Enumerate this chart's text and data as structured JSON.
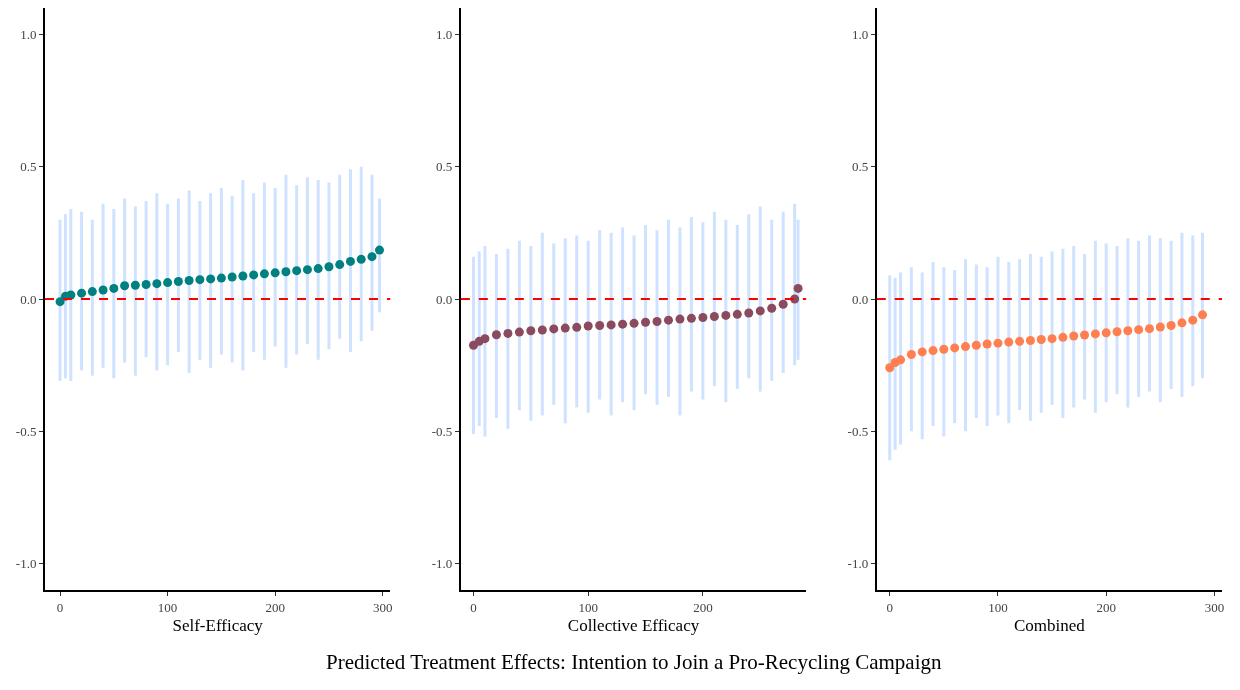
{
  "chart_data": [
    {
      "type": "scatter",
      "xlabel": "Self-Efficacy",
      "marker": "circle",
      "xlim": [
        -14,
        307
      ],
      "xticks": [
        0,
        100,
        200,
        300
      ],
      "ylim": [
        -1.1,
        1.1
      ],
      "yticks": [
        {
          "value": -1,
          "label": "-1.0"
        },
        {
          "value": -0.5,
          "label": "-0.5"
        },
        {
          "value": 0,
          "label": "0.0"
        },
        {
          "value": 0.5,
          "label": "0.5"
        },
        {
          "value": 1,
          "label": "1.0"
        }
      ],
      "ref_lines": [
        {
          "axis": "y",
          "value": 0,
          "color": "#ff0000",
          "line_style": "dashed"
        }
      ],
      "series": [
        {
          "color": "#008080",
          "x": [
            0,
            5,
            10,
            20,
            30,
            40,
            50,
            60,
            70,
            80,
            90,
            100,
            110,
            120,
            130,
            140,
            150,
            160,
            170,
            180,
            190,
            200,
            210,
            220,
            230,
            240,
            250,
            260,
            270,
            280,
            290,
            297
          ],
          "values": [
            -0.01,
            0.01,
            0.015,
            0.022,
            0.028,
            0.034,
            0.04,
            0.05,
            0.052,
            0.055,
            0.058,
            0.062,
            0.066,
            0.07,
            0.073,
            0.076,
            0.079,
            0.083,
            0.087,
            0.091,
            0.095,
            0.099,
            0.103,
            0.107,
            0.111,
            0.115,
            0.122,
            0.13,
            0.142,
            0.15,
            0.16,
            0.185
          ],
          "errors": [
            [
              -0.31,
              0.3
            ],
            [
              -0.3,
              0.32
            ],
            [
              -0.31,
              0.34
            ],
            [
              -0.27,
              0.33
            ],
            [
              -0.29,
              0.3
            ],
            [
              -0.26,
              0.36
            ],
            [
              -0.3,
              0.34
            ],
            [
              -0.24,
              0.38
            ],
            [
              -0.29,
              0.35
            ],
            [
              -0.22,
              0.37
            ],
            [
              -0.27,
              0.4
            ],
            [
              -0.25,
              0.36
            ],
            [
              -0.2,
              0.38
            ],
            [
              -0.28,
              0.41
            ],
            [
              -0.23,
              0.37
            ],
            [
              -0.26,
              0.4
            ],
            [
              -0.21,
              0.42
            ],
            [
              -0.24,
              0.39
            ],
            [
              -0.27,
              0.45
            ],
            [
              -0.2,
              0.4
            ],
            [
              -0.23,
              0.44
            ],
            [
              -0.18,
              0.42
            ],
            [
              -0.26,
              0.47
            ],
            [
              -0.21,
              0.43
            ],
            [
              -0.17,
              0.46
            ],
            [
              -0.23,
              0.45
            ],
            [
              -0.19,
              0.44
            ],
            [
              -0.15,
              0.47
            ],
            [
              -0.2,
              0.49
            ],
            [
              -0.16,
              0.5
            ],
            [
              -0.12,
              0.47
            ],
            [
              -0.05,
              0.38
            ]
          ]
        }
      ]
    },
    {
      "type": "scatter",
      "xlabel": "Collective Efficacy",
      "marker": "circle",
      "xlim": [
        -11,
        290
      ],
      "xticks": [
        0,
        100,
        200
      ],
      "ylim": [
        -1.1,
        1.1
      ],
      "yticks": [
        {
          "value": -1,
          "label": "-1.0"
        },
        {
          "value": -0.5,
          "label": "-0.5"
        },
        {
          "value": 0,
          "label": "0.0"
        },
        {
          "value": 0.5,
          "label": "0.5"
        },
        {
          "value": 1,
          "label": "1.0"
        }
      ],
      "ref_lines": [
        {
          "axis": "y",
          "value": 0,
          "color": "#ff0000",
          "line_style": "dashed"
        }
      ],
      "annotations": [
        "Predicted Treatment Effects: Intention to Join a Pro-Recycling Campaign"
      ],
      "series": [
        {
          "color": "#8b4a5e",
          "x": [
            0,
            5,
            10,
            20,
            30,
            40,
            50,
            60,
            70,
            80,
            90,
            100,
            110,
            120,
            130,
            140,
            150,
            160,
            170,
            180,
            190,
            200,
            210,
            220,
            230,
            240,
            250,
            260,
            270,
            280,
            283
          ],
          "values": [
            -0.175,
            -0.16,
            -0.15,
            -0.135,
            -0.13,
            -0.125,
            -0.12,
            -0.117,
            -0.113,
            -0.11,
            -0.107,
            -0.102,
            -0.1,
            -0.098,
            -0.095,
            -0.092,
            -0.088,
            -0.085,
            -0.08,
            -0.076,
            -0.073,
            -0.07,
            -0.066,
            -0.062,
            -0.058,
            -0.053,
            -0.045,
            -0.035,
            -0.02,
            0.0,
            0.04
          ],
          "errors": [
            [
              -0.51,
              0.16
            ],
            [
              -0.48,
              0.18
            ],
            [
              -0.52,
              0.2
            ],
            [
              -0.45,
              0.17
            ],
            [
              -0.49,
              0.19
            ],
            [
              -0.42,
              0.22
            ],
            [
              -0.46,
              0.2
            ],
            [
              -0.44,
              0.25
            ],
            [
              -0.4,
              0.21
            ],
            [
              -0.47,
              0.23
            ],
            [
              -0.41,
              0.24
            ],
            [
              -0.43,
              0.22
            ],
            [
              -0.38,
              0.26
            ],
            [
              -0.44,
              0.25
            ],
            [
              -0.39,
              0.27
            ],
            [
              -0.42,
              0.24
            ],
            [
              -0.36,
              0.28
            ],
            [
              -0.4,
              0.26
            ],
            [
              -0.37,
              0.3
            ],
            [
              -0.44,
              0.27
            ],
            [
              -0.35,
              0.31
            ],
            [
              -0.38,
              0.29
            ],
            [
              -0.33,
              0.33
            ],
            [
              -0.39,
              0.3
            ],
            [
              -0.34,
              0.28
            ],
            [
              -0.3,
              0.32
            ],
            [
              -0.35,
              0.35
            ],
            [
              -0.31,
              0.3
            ],
            [
              -0.28,
              0.33
            ],
            [
              -0.25,
              0.36
            ],
            [
              -0.23,
              0.3
            ]
          ]
        }
      ]
    },
    {
      "type": "scatter",
      "xlabel": "Combined",
      "marker": "circle",
      "xlim": [
        -12,
        307
      ],
      "xticks": [
        0,
        100,
        200,
        300
      ],
      "ylim": [
        -1.1,
        1.1
      ],
      "yticks": [
        {
          "value": -1,
          "label": "-1.0"
        },
        {
          "value": -0.5,
          "label": "-0.5"
        },
        {
          "value": 0,
          "label": "0.0"
        },
        {
          "value": 0.5,
          "label": "0.5"
        },
        {
          "value": 1,
          "label": "1.0"
        }
      ],
      "ref_lines": [
        {
          "axis": "y",
          "value": 0,
          "color": "#ff0000",
          "line_style": "dashed"
        }
      ],
      "series": [
        {
          "color": "#ff7f50",
          "x": [
            0,
            5,
            10,
            20,
            30,
            40,
            50,
            60,
            70,
            80,
            90,
            100,
            110,
            120,
            130,
            140,
            150,
            160,
            170,
            180,
            190,
            200,
            210,
            220,
            230,
            240,
            250,
            260,
            270,
            280,
            289
          ],
          "values": [
            -0.26,
            -0.24,
            -0.23,
            -0.21,
            -0.2,
            -0.195,
            -0.19,
            -0.185,
            -0.18,
            -0.175,
            -0.17,
            -0.167,
            -0.163,
            -0.16,
            -0.157,
            -0.153,
            -0.15,
            -0.145,
            -0.14,
            -0.136,
            -0.132,
            -0.128,
            -0.124,
            -0.12,
            -0.116,
            -0.112,
            -0.106,
            -0.1,
            -0.09,
            -0.08,
            -0.06
          ],
          "errors": [
            [
              -0.61,
              0.09
            ],
            [
              -0.57,
              0.08
            ],
            [
              -0.55,
              0.1
            ],
            [
              -0.5,
              0.12
            ],
            [
              -0.53,
              0.1
            ],
            [
              -0.48,
              0.14
            ],
            [
              -0.52,
              0.12
            ],
            [
              -0.47,
              0.11
            ],
            [
              -0.5,
              0.15
            ],
            [
              -0.45,
              0.13
            ],
            [
              -0.48,
              0.12
            ],
            [
              -0.44,
              0.16
            ],
            [
              -0.47,
              0.14
            ],
            [
              -0.42,
              0.15
            ],
            [
              -0.46,
              0.17
            ],
            [
              -0.43,
              0.16
            ],
            [
              -0.4,
              0.18
            ],
            [
              -0.45,
              0.19
            ],
            [
              -0.41,
              0.2
            ],
            [
              -0.38,
              0.17
            ],
            [
              -0.43,
              0.22
            ],
            [
              -0.39,
              0.21
            ],
            [
              -0.36,
              0.2
            ],
            [
              -0.41,
              0.23
            ],
            [
              -0.37,
              0.22
            ],
            [
              -0.35,
              0.24
            ],
            [
              -0.39,
              0.23
            ],
            [
              -0.34,
              0.22
            ],
            [
              -0.37,
              0.25
            ],
            [
              -0.33,
              0.24
            ],
            [
              -0.3,
              0.25
            ]
          ]
        }
      ]
    }
  ]
}
